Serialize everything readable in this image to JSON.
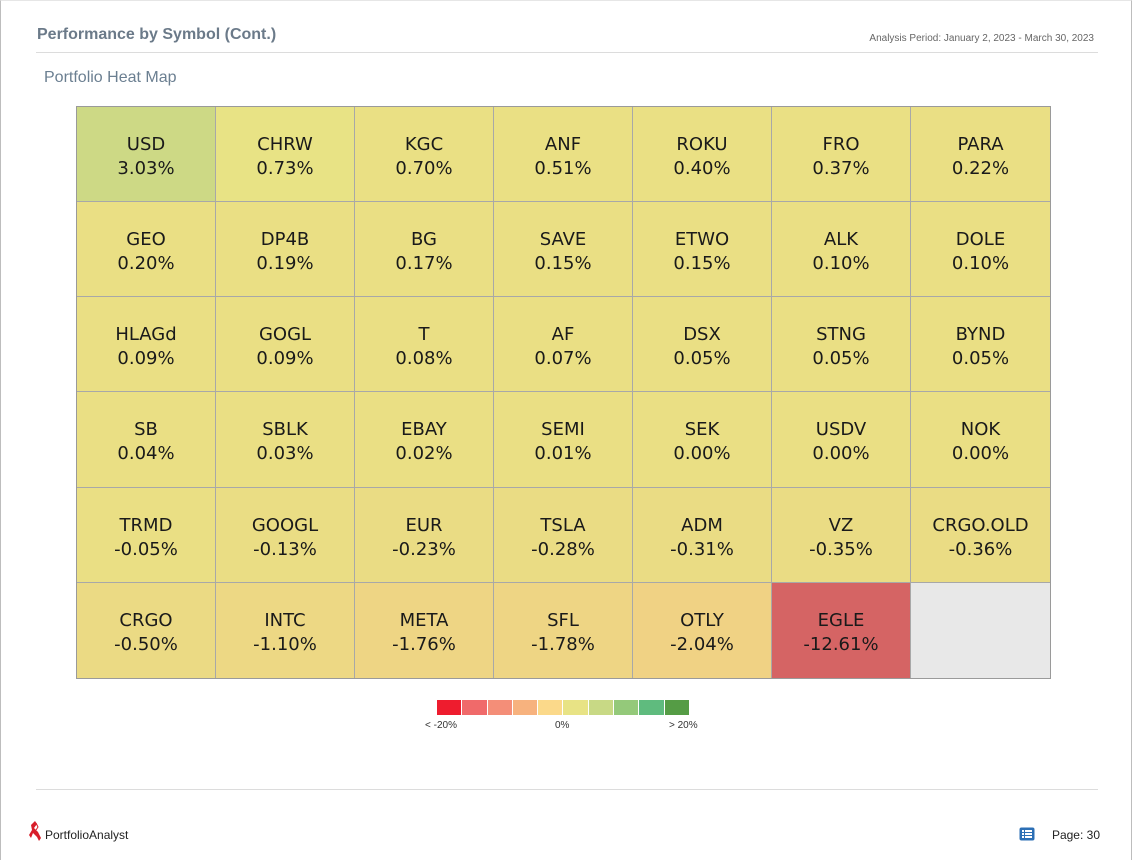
{
  "header": {
    "title": "Performance by Symbol (Cont.)",
    "period": "Analysis Period: January 2, 2023 - March 30, 2023"
  },
  "section_title": "Portfolio Heat Map",
  "heatmap": [
    {
      "symbol": "USD",
      "value": "3.03%",
      "color": "#cdd985"
    },
    {
      "symbol": "CHRW",
      "value": "0.73%",
      "color": "#e8e385"
    },
    {
      "symbol": "KGC",
      "value": "0.70%",
      "color": "#eae084"
    },
    {
      "symbol": "ANF",
      "value": "0.51%",
      "color": "#eae084"
    },
    {
      "symbol": "ROKU",
      "value": "0.40%",
      "color": "#eae084"
    },
    {
      "symbol": "FRO",
      "value": "0.37%",
      "color": "#eae084"
    },
    {
      "symbol": "PARA",
      "value": "0.22%",
      "color": "#eadf84"
    },
    {
      "symbol": "GEO",
      "value": "0.20%",
      "color": "#eadf84"
    },
    {
      "symbol": "DP4B",
      "value": "0.19%",
      "color": "#eadf84"
    },
    {
      "symbol": "BG",
      "value": "0.17%",
      "color": "#eadf84"
    },
    {
      "symbol": "SAVE",
      "value": "0.15%",
      "color": "#eadf84"
    },
    {
      "symbol": "ETWO",
      "value": "0.15%",
      "color": "#eadf84"
    },
    {
      "symbol": "ALK",
      "value": "0.10%",
      "color": "#eadf84"
    },
    {
      "symbol": "DOLE",
      "value": "0.10%",
      "color": "#eadf84"
    },
    {
      "symbol": "HLAGd",
      "value": "0.09%",
      "color": "#eadf84"
    },
    {
      "symbol": "GOGL",
      "value": "0.09%",
      "color": "#eadf84"
    },
    {
      "symbol": "T",
      "value": "0.08%",
      "color": "#eadf84"
    },
    {
      "symbol": "AF",
      "value": "0.07%",
      "color": "#eadf84"
    },
    {
      "symbol": "DSX",
      "value": "0.05%",
      "color": "#eadf84"
    },
    {
      "symbol": "STNG",
      "value": "0.05%",
      "color": "#eadf84"
    },
    {
      "symbol": "BYND",
      "value": "0.05%",
      "color": "#eadf84"
    },
    {
      "symbol": "SB",
      "value": "0.04%",
      "color": "#eadf84"
    },
    {
      "symbol": "SBLK",
      "value": "0.03%",
      "color": "#eadf84"
    },
    {
      "symbol": "EBAY",
      "value": "0.02%",
      "color": "#eadf84"
    },
    {
      "symbol": "SEMI",
      "value": "0.01%",
      "color": "#eadf84"
    },
    {
      "symbol": "SEK",
      "value": "0.00%",
      "color": "#eadf84"
    },
    {
      "symbol": "USDV",
      "value": "0.00%",
      "color": "#eadf84"
    },
    {
      "symbol": "NOK",
      "value": "0.00%",
      "color": "#eadf84"
    },
    {
      "symbol": "TRMD",
      "value": "-0.05%",
      "color": "#eadf84"
    },
    {
      "symbol": "GOOGL",
      "value": "-0.13%",
      "color": "#eadd84"
    },
    {
      "symbol": "EUR",
      "value": "-0.23%",
      "color": "#eadc84"
    },
    {
      "symbol": "TSLA",
      "value": "-0.28%",
      "color": "#eadc84"
    },
    {
      "symbol": "ADM",
      "value": "-0.31%",
      "color": "#eadc84"
    },
    {
      "symbol": "VZ",
      "value": "-0.35%",
      "color": "#eadc84"
    },
    {
      "symbol": "CRGO.OLD",
      "value": "-0.36%",
      "color": "#eadc84"
    },
    {
      "symbol": "CRGO",
      "value": "-0.50%",
      "color": "#ebda84"
    },
    {
      "symbol": "INTC",
      "value": "-1.10%",
      "color": "#edd884"
    },
    {
      "symbol": "META",
      "value": "-1.76%",
      "color": "#eed584"
    },
    {
      "symbol": "SFL",
      "value": "-1.78%",
      "color": "#eed584"
    },
    {
      "symbol": "OTLY",
      "value": "-2.04%",
      "color": "#f0d284"
    },
    {
      "symbol": "EGLE",
      "value": "-12.61%",
      "color": "#d56464"
    },
    {
      "symbol": "",
      "value": "",
      "color": "#e8e8e8"
    }
  ],
  "legend": {
    "colors": [
      "#ee1c2e",
      "#f06a6a",
      "#f48e78",
      "#f7b27e",
      "#fbd98a",
      "#e8e385",
      "#c8d985",
      "#94c97a",
      "#5fbb7e",
      "#559c45"
    ],
    "min_label": "< -20%",
    "mid_label": "0%",
    "max_label": "> 20%"
  },
  "footer": {
    "brand": "PortfolioAnalyst",
    "page": "Page: 30"
  }
}
